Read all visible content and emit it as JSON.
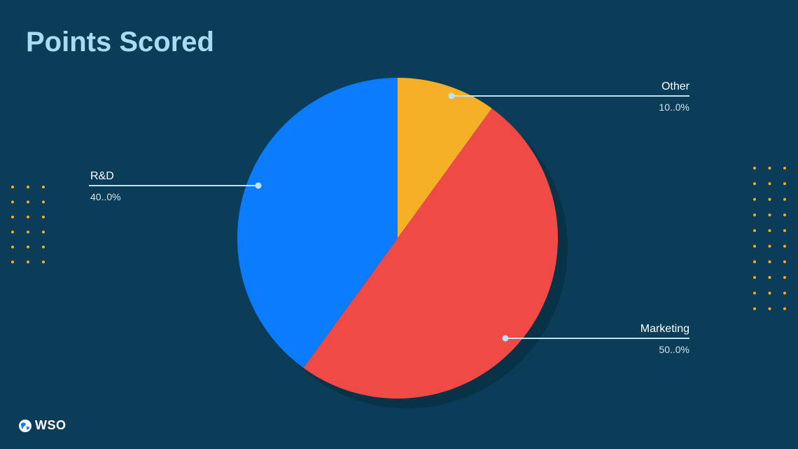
{
  "chart_data": {
    "type": "pie",
    "title": "Points Scored",
    "slices": [
      {
        "label": "Other",
        "value": 10,
        "display": "10..0%",
        "color": "#f5b027"
      },
      {
        "label": "Marketing",
        "value": 50,
        "display": "50..0%",
        "color": "#ef4a45"
      },
      {
        "label": "R&D",
        "value": 40,
        "display": "40..0%",
        "color": "#0b7bff"
      }
    ],
    "start_angle": "12 o'clock",
    "direction": "clockwise",
    "label_style": "leader-lines"
  },
  "colors": {
    "background": "#0b3d58",
    "title": "#a9dcf3",
    "leader_line": "#bfe3f3",
    "dots": "#f5b027"
  },
  "branding": {
    "logo_icon": "globe-icon",
    "logo_text": "WSO"
  }
}
